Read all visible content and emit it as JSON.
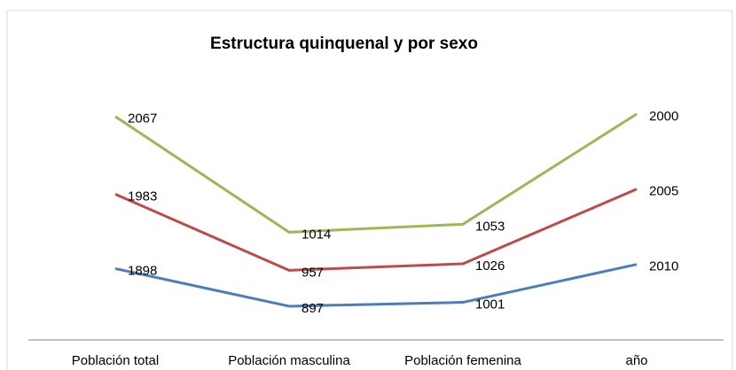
{
  "chart_data": {
    "type": "line",
    "stacked": true,
    "title": "Estructura quinquenal y por sexo",
    "categories": [
      "Población total",
      "Población masculina",
      "Población femenina",
      "año"
    ],
    "series": [
      {
        "color": "#4a7ebb",
        "values": [
          1898,
          897,
          1001,
          2010
        ]
      },
      {
        "color": "#be4b48",
        "values": [
          1983,
          957,
          1026,
          2005
        ]
      },
      {
        "color": "#98b954",
        "values": [
          2067,
          1014,
          1053,
          2000
        ]
      }
    ],
    "ylim": [
      0,
      7000
    ]
  }
}
